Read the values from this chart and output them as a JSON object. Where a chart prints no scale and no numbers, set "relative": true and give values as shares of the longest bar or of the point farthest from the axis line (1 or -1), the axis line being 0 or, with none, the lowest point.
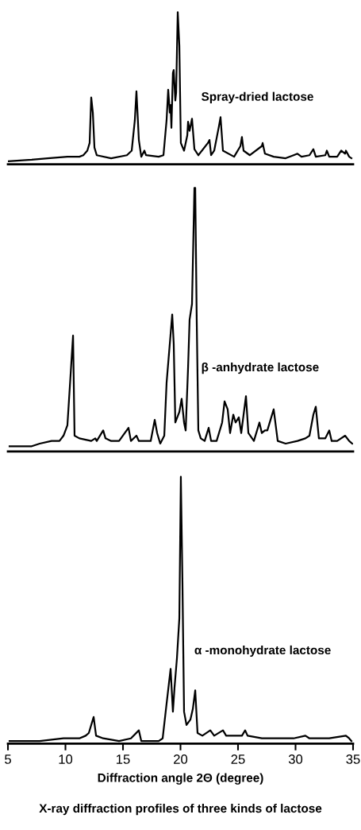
{
  "chart_data": [
    {
      "type": "line",
      "relative": true,
      "xlim": [
        5,
        35
      ],
      "tick_labels": false,
      "series": [
        {
          "name": "Spray-dried lactose",
          "color": "#000000",
          "x": [
            5.0,
            7.07,
            8.45,
            10.17,
            11.21,
            11.55,
            11.9,
            12.1,
            12.24,
            12.38,
            12.52,
            12.72,
            13.97,
            15.34,
            15.76,
            16.03,
            16.17,
            16.38,
            16.59,
            16.86,
            17.0,
            18.1,
            18.52,
            18.79,
            18.93,
            19.07,
            19.14,
            19.21,
            19.34,
            19.41,
            19.55,
            19.62,
            19.76,
            19.9,
            20.03,
            20.31,
            20.59,
            20.66,
            20.79,
            21.0,
            21.21,
            21.55,
            22.38,
            22.52,
            22.66,
            22.93,
            23.34,
            23.48,
            23.69,
            24.66,
            25.21,
            25.34,
            25.48,
            26.03,
            27.07,
            27.14,
            27.34,
            28.1,
            29.14,
            29.83,
            30.17,
            30.52,
            31.21,
            31.55,
            31.76,
            32.59,
            32.72,
            32.93,
            33.62,
            33.97,
            34.31,
            34.38,
            34.66,
            34.86
          ],
          "values": [
            0.02,
            0.03,
            0.04,
            0.05,
            0.05,
            0.06,
            0.09,
            0.14,
            0.44,
            0.34,
            0.11,
            0.06,
            0.04,
            0.06,
            0.09,
            0.29,
            0.48,
            0.16,
            0.05,
            0.09,
            0.06,
            0.05,
            0.06,
            0.29,
            0.49,
            0.34,
            0.39,
            0.24,
            0.6,
            0.62,
            0.42,
            0.47,
            1.0,
            0.78,
            0.14,
            0.09,
            0.19,
            0.28,
            0.22,
            0.3,
            0.1,
            0.06,
            0.14,
            0.16,
            0.06,
            0.09,
            0.25,
            0.31,
            0.09,
            0.05,
            0.12,
            0.18,
            0.09,
            0.06,
            0.12,
            0.14,
            0.07,
            0.05,
            0.04,
            0.06,
            0.07,
            0.05,
            0.06,
            0.1,
            0.05,
            0.06,
            0.09,
            0.05,
            0.05,
            0.09,
            0.07,
            0.09,
            0.05,
            0.04
          ]
        }
      ]
    },
    {
      "type": "line",
      "relative": true,
      "xlim": [
        5,
        35
      ],
      "tick_labels": false,
      "series": [
        {
          "name": "β -anhydrate lactose",
          "color": "#000000",
          "x": [
            5.14,
            7.07,
            7.76,
            8.79,
            9.48,
            9.83,
            10.17,
            10.66,
            10.79,
            11.21,
            12.24,
            12.59,
            12.72,
            13.28,
            13.48,
            13.97,
            14.66,
            15.48,
            15.69,
            16.17,
            16.38,
            16.72,
            17.41,
            17.76,
            17.97,
            18.24,
            18.59,
            18.79,
            19.28,
            19.41,
            19.55,
            19.9,
            20.1,
            20.31,
            20.45,
            20.66,
            20.79,
            21.0,
            21.21,
            21.28,
            21.41,
            21.55,
            21.76,
            22.1,
            22.45,
            22.66,
            23.14,
            23.62,
            23.83,
            24.1,
            24.31,
            24.59,
            24.79,
            25.07,
            25.28,
            25.69,
            25.9,
            26.38,
            26.86,
            27.07,
            27.34,
            27.55,
            28.1,
            28.45,
            29.14,
            30.17,
            30.86,
            31.21,
            31.55,
            31.76,
            32.03,
            32.59,
            32.93,
            33.14,
            33.62,
            34.31,
            34.66,
            34.93
          ],
          "values": [
            0.02,
            0.02,
            0.03,
            0.04,
            0.04,
            0.06,
            0.1,
            0.44,
            0.06,
            0.05,
            0.04,
            0.05,
            0.04,
            0.08,
            0.05,
            0.04,
            0.04,
            0.09,
            0.04,
            0.06,
            0.04,
            0.04,
            0.04,
            0.12,
            0.07,
            0.03,
            0.06,
            0.26,
            0.52,
            0.41,
            0.11,
            0.15,
            0.2,
            0.11,
            0.08,
            0.32,
            0.5,
            0.56,
            1.0,
            1.0,
            0.5,
            0.08,
            0.05,
            0.04,
            0.09,
            0.04,
            0.04,
            0.11,
            0.19,
            0.16,
            0.07,
            0.14,
            0.11,
            0.13,
            0.07,
            0.21,
            0.07,
            0.04,
            0.11,
            0.07,
            0.08,
            0.08,
            0.16,
            0.04,
            0.03,
            0.04,
            0.05,
            0.06,
            0.14,
            0.17,
            0.05,
            0.05,
            0.08,
            0.04,
            0.04,
            0.06,
            0.04,
            0.03
          ]
        }
      ]
    },
    {
      "type": "line",
      "relative": true,
      "xlim": [
        5,
        35
      ],
      "xticks": [
        5,
        10,
        15,
        20,
        25,
        30,
        35
      ],
      "tick_labels": "x",
      "xlabel": "Diffraction angle 2Θ (degree)",
      "annotations": [
        "X-ray diffraction profiles of three kinds of lactose"
      ],
      "series": [
        {
          "name": "α -monohydrate lactose",
          "color": "#000000",
          "x": [
            5.14,
            7.76,
            9.83,
            11.21,
            11.76,
            12.03,
            12.45,
            12.66,
            13.28,
            14.66,
            15.69,
            16.38,
            16.59,
            17.07,
            18.1,
            18.45,
            18.79,
            19.14,
            19.34,
            19.48,
            19.69,
            19.9,
            20.03,
            20.17,
            20.31,
            20.52,
            20.86,
            21.07,
            21.28,
            21.48,
            21.9,
            22.59,
            22.93,
            23.69,
            23.97,
            25.34,
            25.62,
            25.83,
            27.07,
            27.76,
            29.83,
            30.86,
            31.21,
            32.79,
            32.93,
            34.38,
            34.66,
            34.86
          ],
          "values": [
            0.01,
            0.01,
            0.02,
            0.02,
            0.03,
            0.04,
            0.1,
            0.03,
            0.02,
            0.01,
            0.02,
            0.05,
            0.01,
            0.01,
            0.01,
            0.02,
            0.15,
            0.28,
            0.12,
            0.21,
            0.32,
            0.47,
            1.0,
            0.6,
            0.12,
            0.07,
            0.09,
            0.13,
            0.2,
            0.04,
            0.03,
            0.05,
            0.03,
            0.05,
            0.03,
            0.03,
            0.05,
            0.03,
            0.02,
            0.02,
            0.02,
            0.03,
            0.02,
            0.02,
            0.02,
            0.03,
            0.02,
            0.01
          ]
        }
      ]
    }
  ]
}
